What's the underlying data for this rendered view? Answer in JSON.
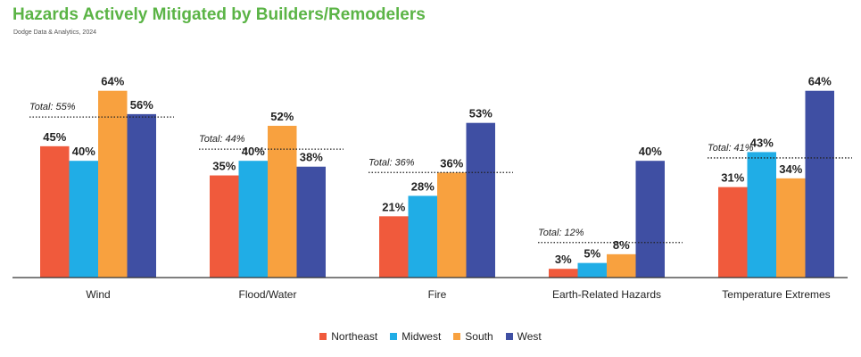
{
  "chart_data": {
    "type": "bar",
    "title": "Hazards Actively Mitigated by Builders/Remodelers",
    "subtitle": "Dodge Data & Analytics, 2024",
    "categories": [
      "Wind",
      "Flood/Water",
      "Fire",
      "Earth-Related Hazards",
      "Temperature Extremes"
    ],
    "series": [
      {
        "name": "Northeast",
        "color": "#f05a3c",
        "values": [
          45,
          35,
          21,
          3,
          31
        ]
      },
      {
        "name": "Midwest",
        "color": "#20ade6",
        "values": [
          40,
          40,
          28,
          5,
          43
        ]
      },
      {
        "name": "South",
        "color": "#f8a13f",
        "values": [
          64,
          52,
          36,
          8,
          34
        ]
      },
      {
        "name": "West",
        "color": "#3f4fa3",
        "values": [
          56,
          38,
          53,
          40,
          64
        ]
      }
    ],
    "totals": [
      55,
      44,
      36,
      12,
      41
    ],
    "total_labels": [
      "Total: 55%",
      "Total: 44%",
      "Total: 36%",
      "Total: 12%",
      "Total: 41%"
    ],
    "value_labels": [
      [
        "45%",
        "35%",
        "21%",
        "3%",
        "31%"
      ],
      [
        "40%",
        "40%",
        "28%",
        "5%",
        "43%"
      ],
      [
        "64%",
        "52%",
        "36%",
        "8%",
        "34%"
      ],
      [
        "56%",
        "38%",
        "53%",
        "40%",
        "64%"
      ]
    ],
    "ylim": [
      0,
      64
    ],
    "grid": false,
    "legend_position": "bottom-center"
  }
}
